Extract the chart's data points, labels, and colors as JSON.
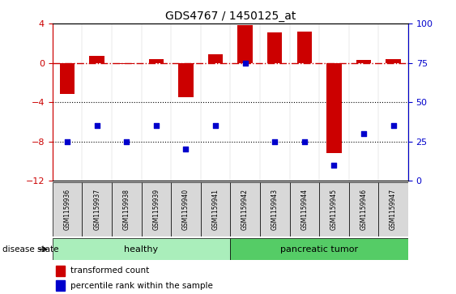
{
  "title": "GDS4767 / 1450125_at",
  "samples": [
    "GSM1159936",
    "GSM1159937",
    "GSM1159938",
    "GSM1159939",
    "GSM1159940",
    "GSM1159941",
    "GSM1159942",
    "GSM1159943",
    "GSM1159944",
    "GSM1159945",
    "GSM1159946",
    "GSM1159947"
  ],
  "transformed_count": [
    -3.2,
    0.7,
    -0.15,
    0.35,
    -3.5,
    0.9,
    3.85,
    3.1,
    3.2,
    -9.2,
    0.3,
    0.35
  ],
  "percentile_rank": [
    25,
    35,
    25,
    35,
    20,
    35,
    75,
    25,
    25,
    10,
    30,
    35
  ],
  "healthy_count": 6,
  "pancreatic_count": 6,
  "ylim_left": [
    -12,
    4
  ],
  "ylim_right": [
    0,
    100
  ],
  "yticks_left": [
    -12,
    -8,
    -4,
    0,
    4
  ],
  "yticks_right": [
    0,
    25,
    50,
    75,
    100
  ],
  "bar_color": "#cc0000",
  "dot_color": "#0000cc",
  "dashed_line_color": "#cc0000",
  "dotted_line_color": "#000000",
  "healthy_color": "#aaeebb",
  "tumor_color": "#55cc66",
  "sample_cell_color": "#d8d8d8",
  "bg_color": "#ffffff",
  "tick_label_color_left": "#cc0000",
  "tick_label_color_right": "#0000cc",
  "legend_bar_label": "transformed count",
  "legend_dot_label": "percentile rank within the sample",
  "disease_label": "disease state",
  "healthy_label": "healthy",
  "tumor_label": "pancreatic tumor"
}
